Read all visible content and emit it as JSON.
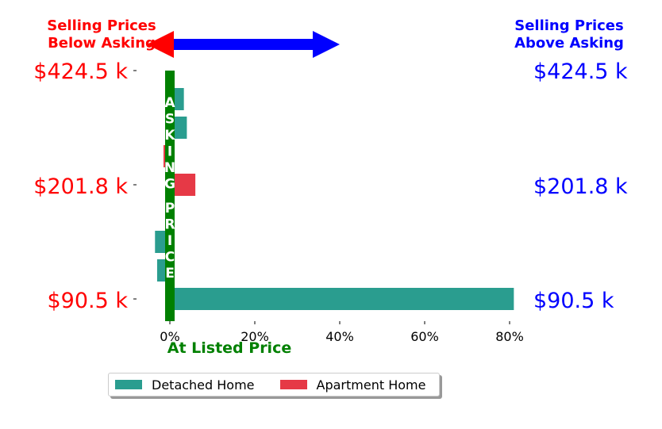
{
  "colors": {
    "below": "#ff0000",
    "above": "#0000ff",
    "asking": "#008000",
    "detached": "#2a9d8f",
    "apartment": "#e63946"
  },
  "headers": {
    "below": [
      "Selling Prices",
      "Below Asking"
    ],
    "above": [
      "Selling Prices",
      "Above Asking"
    ]
  },
  "center_label": "ASKING PRICE",
  "legend": {
    "detached": "Detached Home",
    "apartment": "Apartment Home"
  },
  "chart_data": {
    "type": "bar",
    "orientation": "horizontal",
    "xlabel": "At Listed Price",
    "xlim": [
      -0.05,
      0.82
    ],
    "x_ticks": [
      0,
      0.2,
      0.4,
      0.6,
      0.8
    ],
    "x_tick_labels": [
      "0%",
      "20%",
      "40%",
      "60%",
      "80%"
    ],
    "left_tick_labels": [
      "$424.5 k",
      "$201.8 k",
      "$90.5 k"
    ],
    "right_tick_labels": [
      "$424.5 k",
      "$201.8 k",
      "$90.5 k"
    ],
    "legend_position": "bottom-center",
    "series": [
      {
        "name": "Detached Home",
        "color": "#2a9d8f",
        "bars": [
          {
            "row": 0,
            "value": 0.81
          },
          {
            "row": 1,
            "value": -0.03
          },
          {
            "row": 2,
            "value": -0.035
          },
          {
            "row": 6,
            "value": 0.04
          },
          {
            "row": 7,
            "value": 0.033
          }
        ]
      },
      {
        "name": "Apartment Home",
        "color": "#e63946",
        "bars": [
          {
            "row": 4,
            "value": 0.06
          },
          {
            "row": 5,
            "value": -0.015
          }
        ]
      }
    ]
  }
}
